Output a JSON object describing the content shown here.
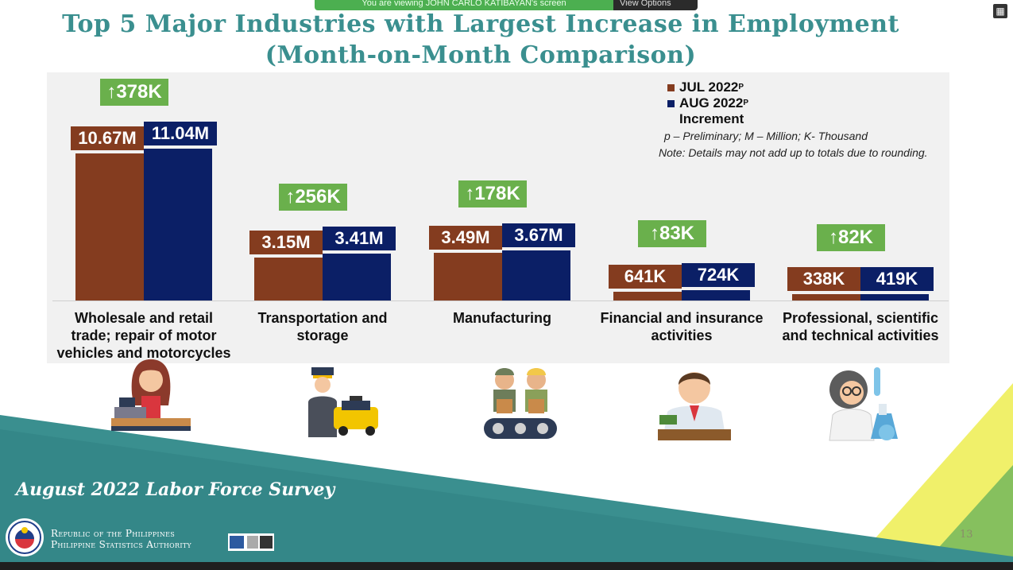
{
  "banner": {
    "text": "You are viewing JOHN CARLO KATIBAYAN's screen",
    "button": "View Options"
  },
  "title": {
    "line1": "Top 5 Major Industries with Largest Increase in Employment",
    "line2": "(Month-on-Month Comparison)"
  },
  "colors": {
    "jul": "#843c1f",
    "aug": "#0b1f66",
    "increment": "#6ab04c",
    "teal": "#3a8f8f"
  },
  "legend": {
    "jul": "JUL 2022",
    "aug": "AUG 2022",
    "superscript": "P",
    "increment": "Increment"
  },
  "notes": {
    "abbrev": "p – Preliminary; M – Million; K- Thousand",
    "rounding": "Note: Details may not add up to totals due to rounding."
  },
  "chart_data": {
    "type": "bar",
    "title": "Top 5 Major Industries with Largest Increase in Employment (Month-on-Month Comparison)",
    "categories": [
      "Wholesale and retail trade; repair of motor vehicles and motorcycles",
      "Transportation and storage",
      "Manufacturing",
      "Financial and insurance activities",
      "Professional, scientific and technical activities"
    ],
    "category_lines": [
      [
        "Wholesale and retail",
        "trade; repair of motor",
        "vehicles and motorcycles"
      ],
      [
        "Transportation and",
        "storage"
      ],
      [
        "Manufacturing"
      ],
      [
        "Financial and insurance",
        "activities"
      ],
      [
        "Professional, scientific",
        "and technical activities"
      ]
    ],
    "series": [
      {
        "name": "JUL 2022P",
        "unit": "thousands",
        "values": [
          10670,
          3150,
          3490,
          641,
          338
        ],
        "labels": [
          "10.67M",
          "3.15M",
          "3.49M",
          "641K",
          "338K"
        ]
      },
      {
        "name": "AUG 2022P",
        "unit": "thousands",
        "values": [
          11040,
          3410,
          3670,
          724,
          419
        ],
        "labels": [
          "11.04M",
          "3.41M",
          "3.67M",
          "724K",
          "419K"
        ]
      }
    ],
    "increment": {
      "name": "Increment",
      "values": [
        378,
        256,
        178,
        83,
        82
      ],
      "labels": [
        "↑378K",
        "↑256K",
        "↑178K",
        "↑83K",
        "↑82K"
      ]
    }
  },
  "icons": [
    "cashier-icon",
    "driver-taxi-icon",
    "factory-workers-icon",
    "banker-icon",
    "scientist-icon"
  ],
  "footer": {
    "survey": "August 2022 Labor Force Survey",
    "org_line1": "Republic of the Philippines",
    "org_line2": "Philippine Statistics Authority",
    "page_number": "13"
  }
}
